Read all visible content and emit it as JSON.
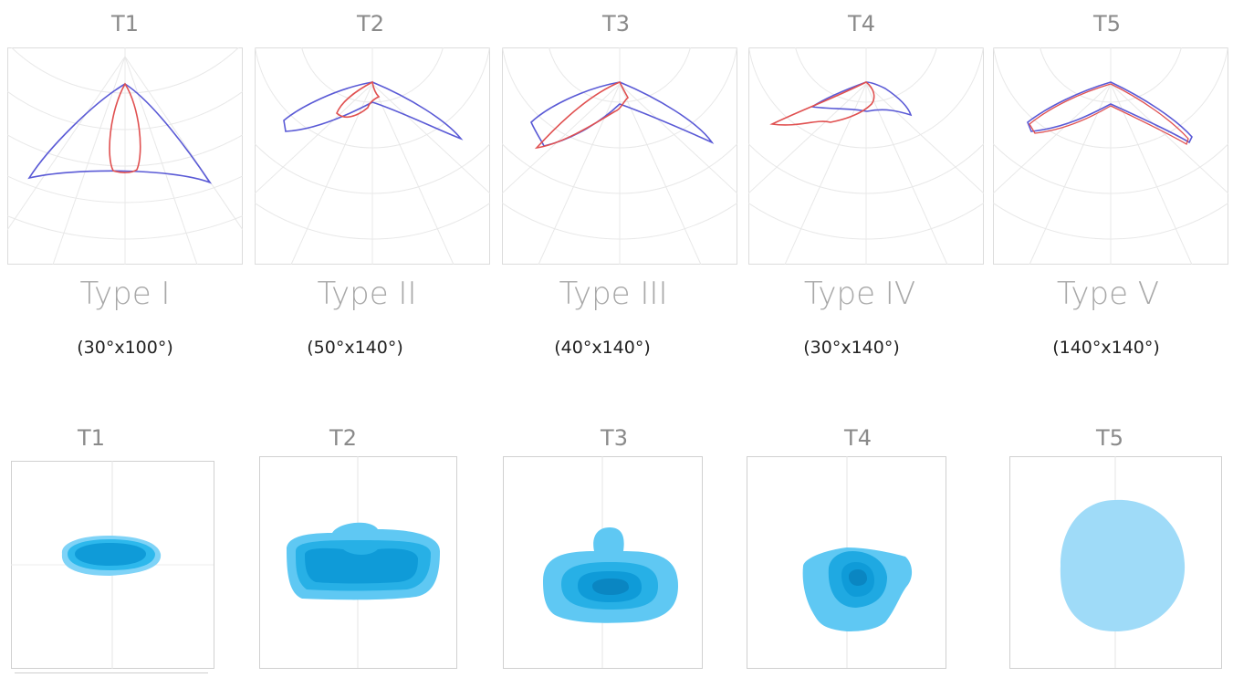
{
  "polar_section": {
    "items": [
      {
        "code": "T1",
        "type": "Type I",
        "angle": "(30°x100°)"
      },
      {
        "code": "T2",
        "type": "Type II",
        "angle": "(50°x140°)"
      },
      {
        "code": "T3",
        "type": "Type III",
        "angle": "(40°x140°)"
      },
      {
        "code": "T4",
        "type": "Type IV",
        "angle": "(30°x140°)"
      },
      {
        "code": "T5",
        "type": "Type V",
        "angle": "(140°x140°)"
      }
    ]
  },
  "iso_section": {
    "items": [
      {
        "code": "T1"
      },
      {
        "code": "T2"
      },
      {
        "code": "T3"
      },
      {
        "code": "T4"
      },
      {
        "code": "T5"
      }
    ]
  },
  "colors": {
    "curve_blue": "#5a5ad6",
    "curve_red": "#e05050",
    "grid": "#e3e3e3",
    "iso_light": "#7fd3f7",
    "iso_mid": "#2db8ec",
    "iso_dark": "#0f9bd8",
    "iso_darkest": "#0a86c2"
  }
}
